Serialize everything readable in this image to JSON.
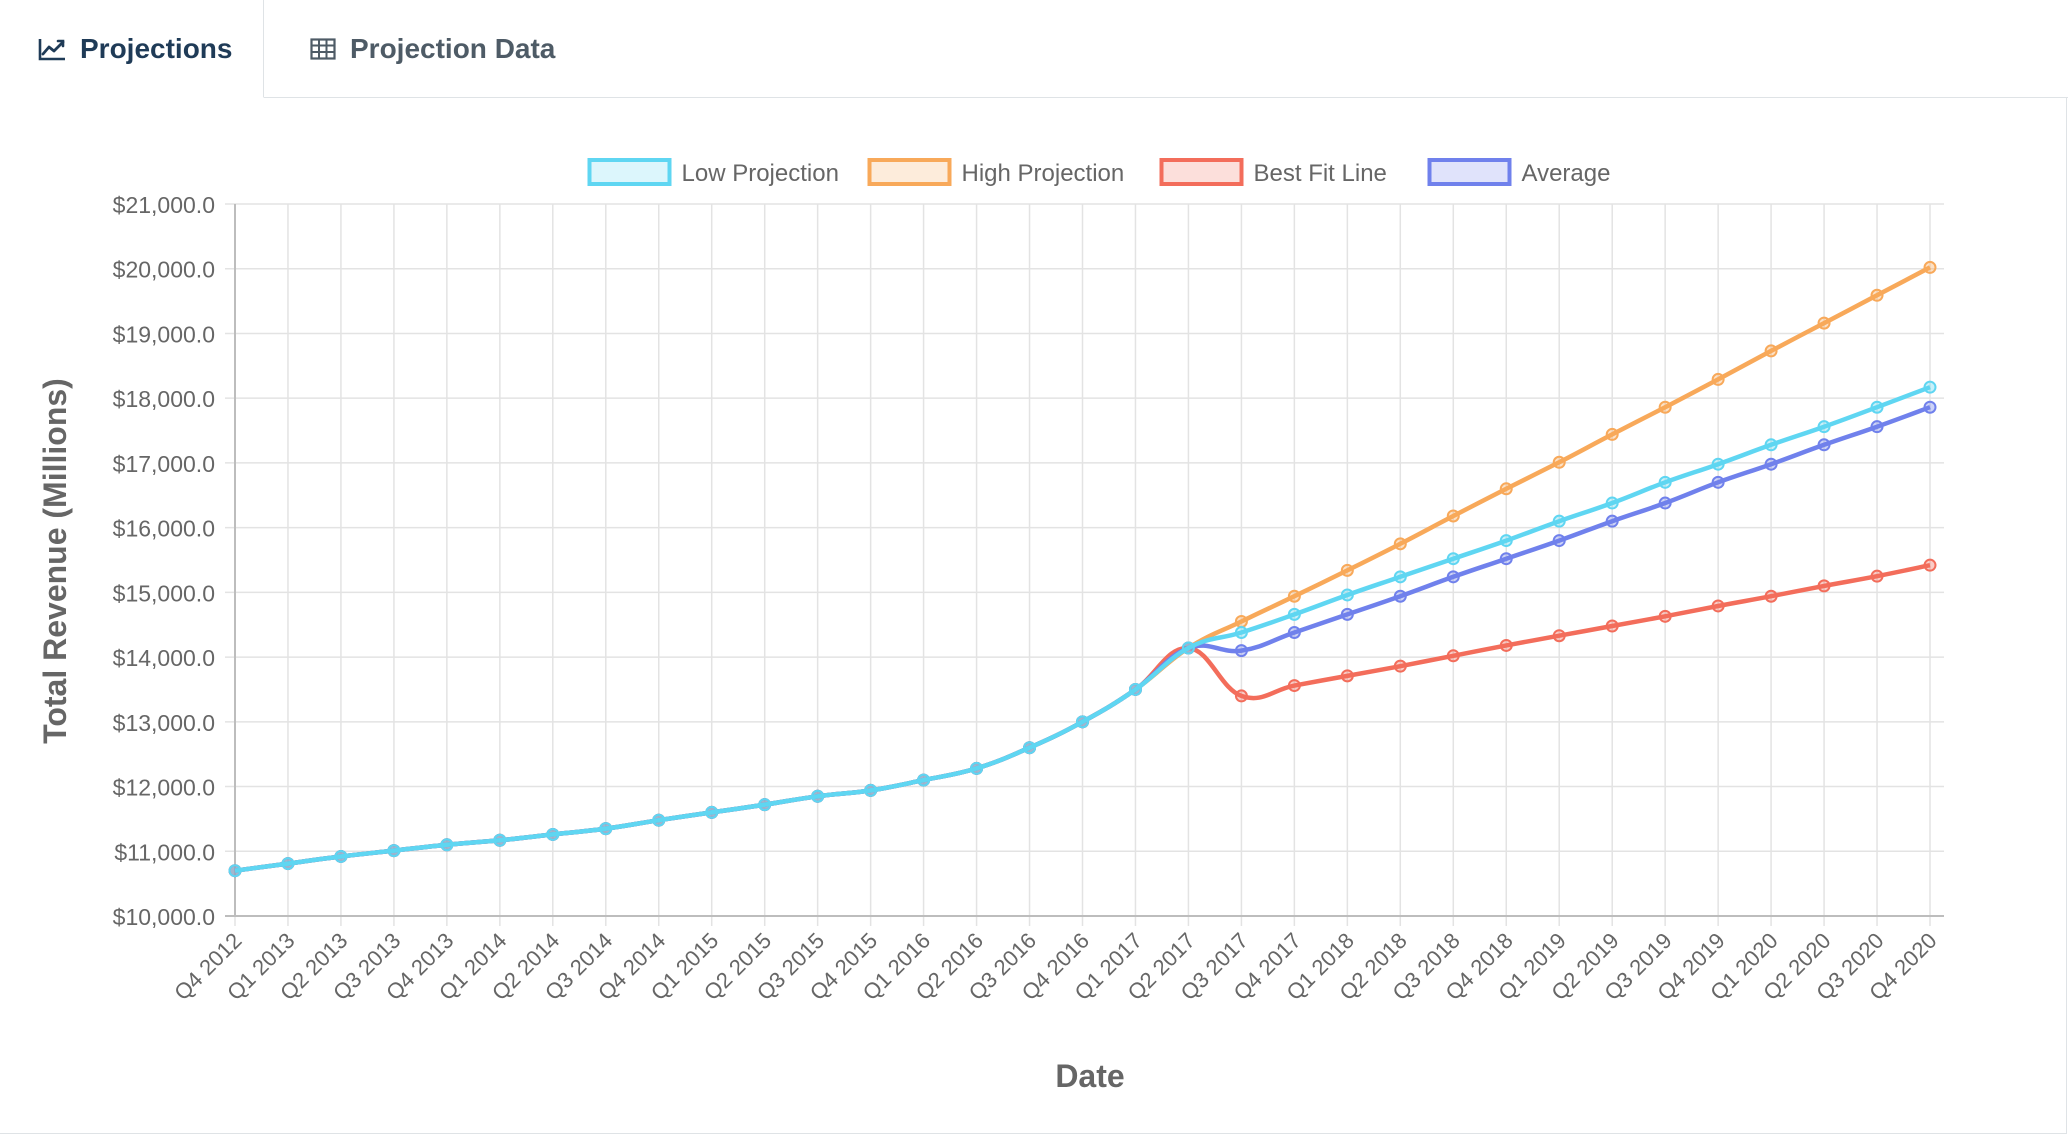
{
  "tabs": [
    {
      "label": "Projections",
      "icon": "line-chart-icon",
      "active": true
    },
    {
      "label": "Projection Data",
      "icon": "table-icon",
      "active": false
    }
  ],
  "chart_data": {
    "type": "line",
    "title": "",
    "xlabel": "Date",
    "ylabel": "Total Revenue (Millions)",
    "ylim": [
      10000,
      21000
    ],
    "y_ticks": [
      "$21,000.0",
      "$20,000.0",
      "$19,000.0",
      "$18,000.0",
      "$17,000.0",
      "$16,000.0",
      "$15,000.0",
      "$14,000.0",
      "$13,000.0",
      "$12,000.0",
      "$11,000.0",
      "$10,000.0"
    ],
    "grid": true,
    "legend_position": "top",
    "categories": [
      "Q4 2012",
      "Q1 2013",
      "Q2 2013",
      "Q3 2013",
      "Q4 2013",
      "Q1 2014",
      "Q2 2014",
      "Q3 2014",
      "Q4 2014",
      "Q1 2015",
      "Q2 2015",
      "Q3 2015",
      "Q4 2015",
      "Q1 2016",
      "Q2 2016",
      "Q3 2016",
      "Q4 2016",
      "Q1 2017",
      "Q2 2017",
      "Q3 2017",
      "Q4 2017",
      "Q1 2018",
      "Q2 2018",
      "Q3 2018",
      "Q4 2018",
      "Q1 2019",
      "Q2 2019",
      "Q3 2019",
      "Q4 2019",
      "Q1 2020",
      "Q2 2020",
      "Q3 2020",
      "Q4 2020"
    ],
    "series": [
      {
        "name": "Low Projection",
        "color": "#5fd6f2",
        "values": [
          10700,
          10810,
          10920,
          11010,
          11100,
          11170,
          11260,
          11350,
          11480,
          11600,
          11720,
          11850,
          11940,
          12100,
          12280,
          12600,
          13000,
          13500,
          14140,
          14380,
          14660,
          14960,
          15240,
          15520,
          15800,
          16100,
          16380,
          16700,
          16980,
          17280,
          17560,
          17860,
          18170
        ]
      },
      {
        "name": "High Projection",
        "color": "#f8a95a",
        "values": [
          10700,
          10810,
          10920,
          11010,
          11100,
          11170,
          11260,
          11350,
          11480,
          11600,
          11720,
          11850,
          11940,
          12100,
          12280,
          12600,
          13000,
          13500,
          14140,
          14550,
          14940,
          15340,
          15750,
          16180,
          16600,
          17010,
          17440,
          17860,
          18290,
          18730,
          19160,
          19590,
          20020
        ]
      },
      {
        "name": "Best Fit Line",
        "color": "#f36d5b",
        "values": [
          10700,
          10810,
          10920,
          11010,
          11100,
          11170,
          11260,
          11350,
          11480,
          11600,
          11720,
          11850,
          11940,
          12100,
          12280,
          12600,
          13000,
          13500,
          14140,
          13400,
          13560,
          13710,
          13860,
          14020,
          14180,
          14330,
          14480,
          14630,
          14790,
          14940,
          15100,
          15250,
          15420
        ]
      },
      {
        "name": "Average",
        "color": "#7081ec",
        "values": [
          10700,
          10810,
          10920,
          11010,
          11100,
          11170,
          11260,
          11350,
          11480,
          11600,
          11720,
          11850,
          11940,
          12100,
          12280,
          12600,
          13000,
          13500,
          14140,
          14100,
          14380,
          14660,
          14940,
          15240,
          15520,
          15800,
          16100,
          16380,
          16700,
          16980,
          17280,
          17560,
          17860
        ]
      }
    ]
  }
}
